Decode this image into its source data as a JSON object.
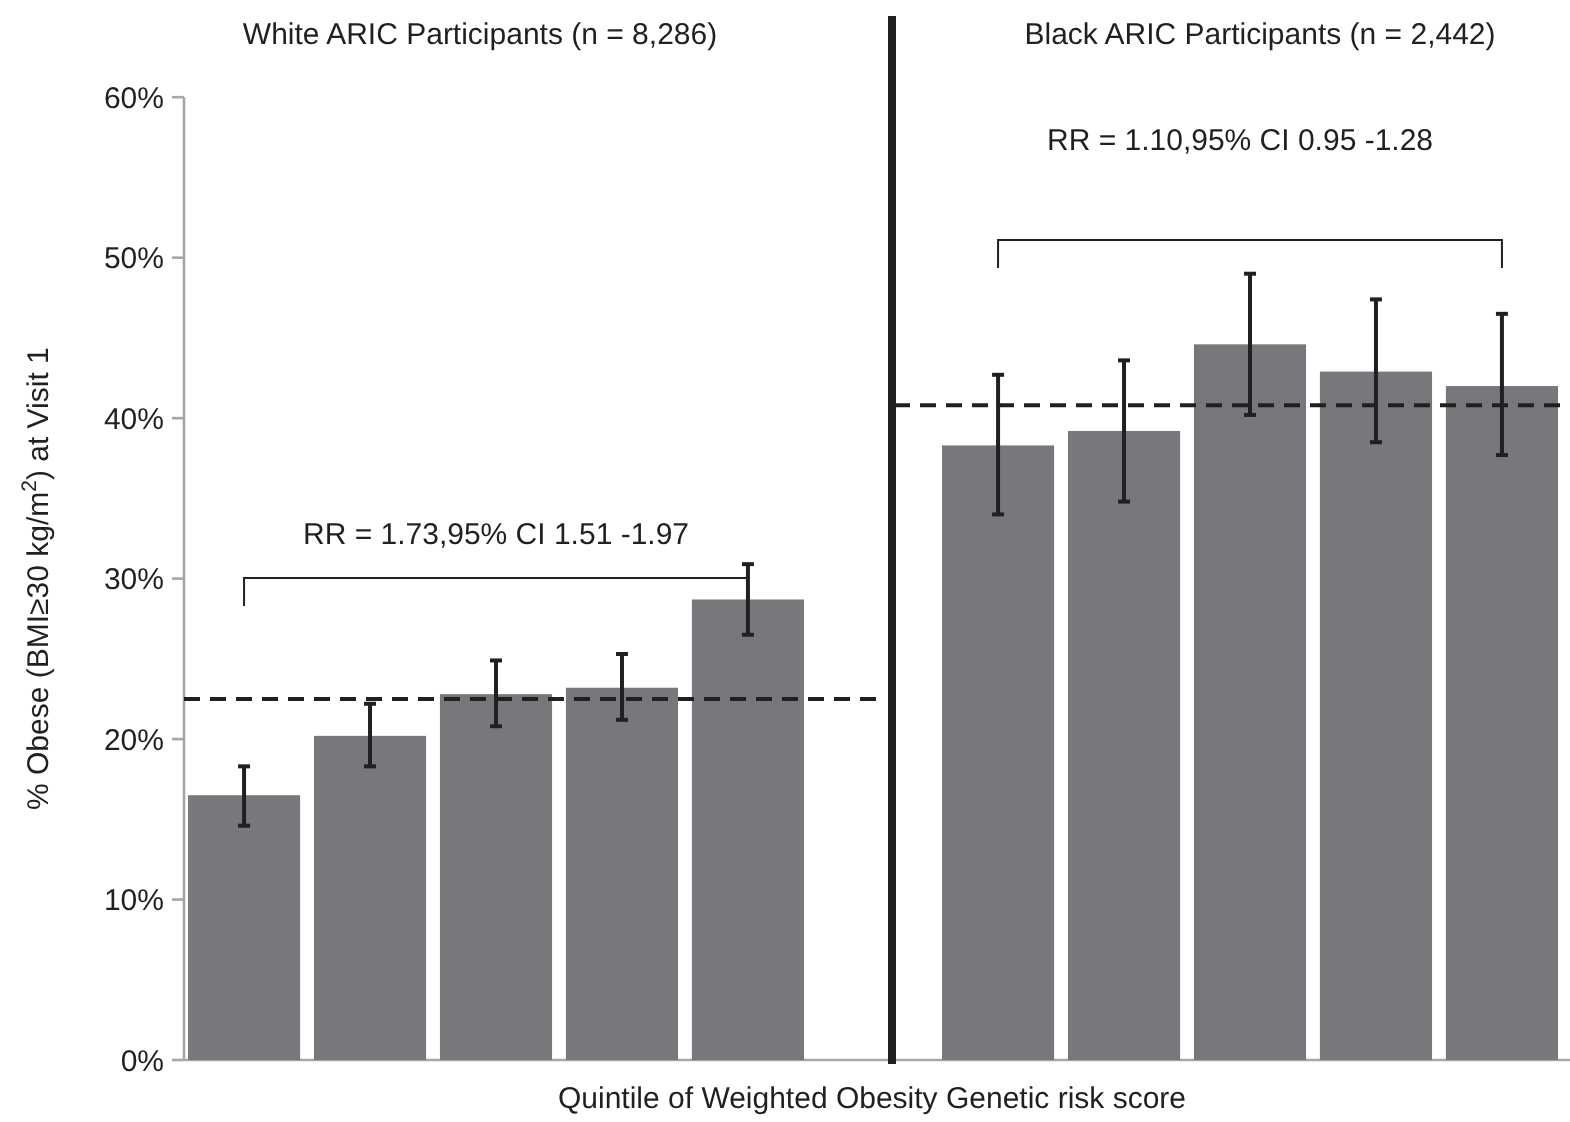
{
  "chart_data": {
    "type": "bar",
    "xlabel": "Quintile of Weighted Obesity Genetic risk score",
    "ylabel": "% Obese (BMI≥30 kg/m$^{2}$) at Visit 1",
    "categories": [
      null,
      null,
      null,
      null,
      null,
      null,
      null,
      null,
      null,
      null
    ],
    "values": [
      16.5,
      20.2,
      22.8,
      23.2,
      28.7,
      38.3,
      39.2,
      44.6,
      42.9,
      42.0
    ],
    "errors": [
      [
        14.6,
        18.3
      ],
      [
        18.3,
        22.2
      ],
      [
        20.8,
        24.9
      ],
      [
        21.2,
        25.3
      ],
      [
        26.5,
        30.9
      ],
      [
        34.0,
        42.7
      ],
      [
        34.8,
        43.6
      ],
      [
        40.2,
        49.0
      ],
      [
        38.5,
        47.4
      ],
      [
        37.7,
        46.5
      ]
    ],
    "color": "#77787c",
    "ylim": [
      0,
      60
    ],
    "yticks": [
      {
        "value": 0,
        "label": "0%"
      },
      {
        "value": 10,
        "label": "10%"
      },
      {
        "value": 20,
        "label": "20%"
      },
      {
        "value": 30,
        "label": "30%"
      },
      {
        "value": 40,
        "label": "40%"
      },
      {
        "value": 50,
        "label": "50%"
      },
      {
        "value": 60,
        "label": "60%"
      }
    ],
    "tick_labels": "y",
    "ref_lines": [
      {
        "axis": "y",
        "value": 22.5,
        "line_style": "dashed",
        "color": "#231f20"
      },
      {
        "axis": "y",
        "value": 40.8,
        "line_style": "dashed",
        "color": "#231f20"
      }
    ],
    "annotations": [
      "White ARIC Participants (n = 8,286)",
      "Black ARIC Participants (n = 2,442)",
      "RR = 1.73,95% CI 1.51 -1.97",
      "RR = 1.10,95% CI 0.95 -1.28"
    ]
  }
}
